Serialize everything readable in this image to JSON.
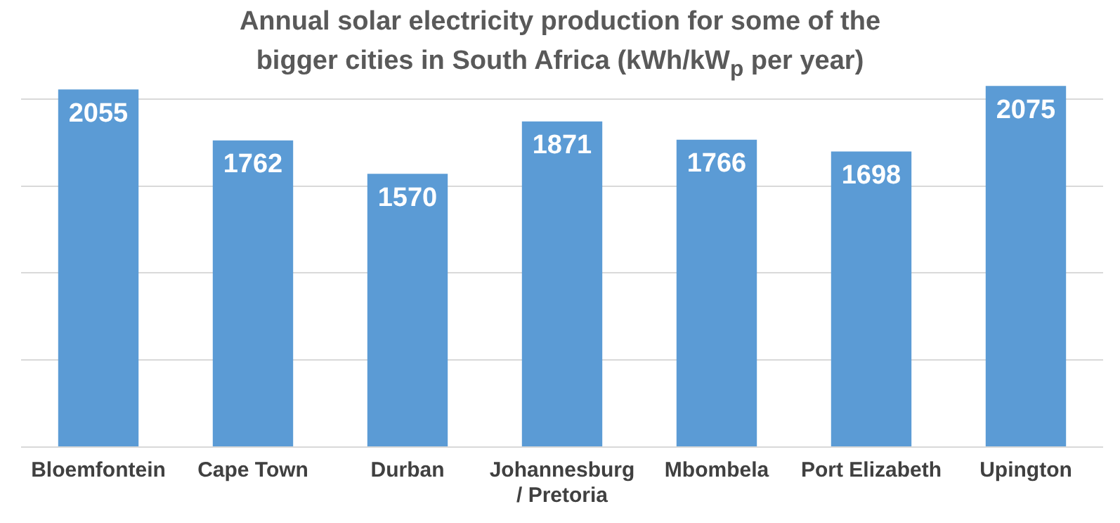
{
  "chart_data": {
    "type": "bar",
    "title": "Annual solar electricity production for some of the bigger cities in South Africa (kWh/kW$_{p}$ per year)",
    "categories": [
      "Bloemfontein",
      "Cape Town",
      "Durban",
      "Johannesburg / Pretoria",
      "Mbombela",
      "Port Elizabeth",
      "Upington"
    ],
    "values": [
      2055,
      1762,
      1570,
      1871,
      1766,
      1698,
      2075
    ],
    "color": "#5b9bd5",
    "ylim": [
      0,
      2100
    ],
    "yticks": [
      {
        "value": 0,
        "label": null
      },
      {
        "value": 500,
        "label": null
      },
      {
        "value": 1000,
        "label": null
      },
      {
        "value": 1500,
        "label": null
      },
      {
        "value": 2000,
        "label": null
      }
    ],
    "grid": "y",
    "tick_labels": "x",
    "data_labels": true,
    "legend": false
  }
}
